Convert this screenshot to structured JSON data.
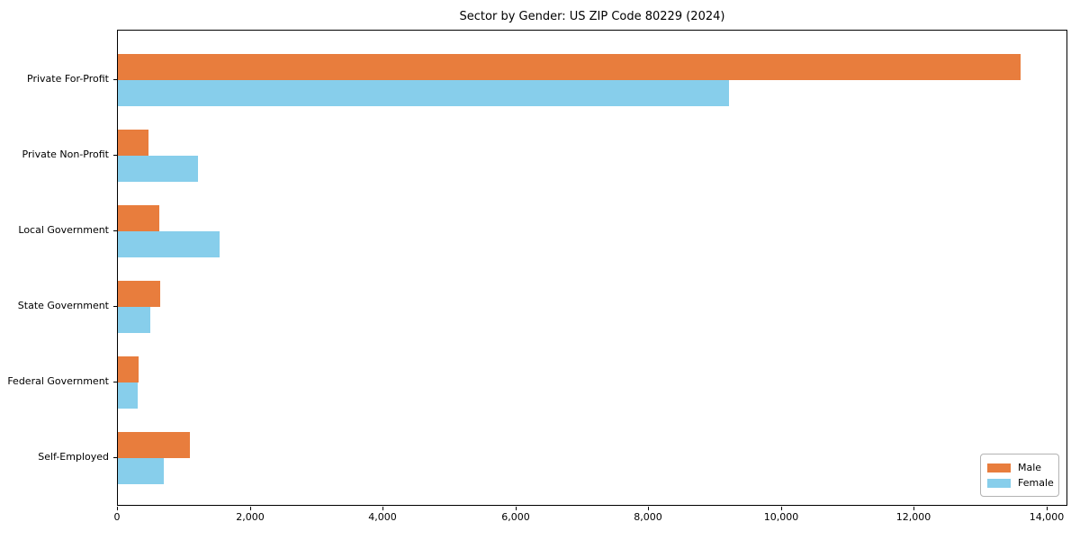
{
  "title": "Sector by Gender: US ZIP Code 80229 (2024)",
  "colors": {
    "male": "#e87d3d",
    "female": "#87ceeb",
    "spine": "#000000",
    "legend_border": "#b3b3b3",
    "background": "#ffffff"
  },
  "legend": {
    "position": "lower right",
    "entries": [
      "Male",
      "Female"
    ]
  },
  "chart_data": {
    "type": "bar",
    "orientation": "horizontal",
    "title": "Sector by Gender: US ZIP Code 80229 (2024)",
    "categories": [
      "Private For-Profit",
      "Private Non-Profit",
      "Local Government",
      "State Government",
      "Federal Government",
      "Self-Employed"
    ],
    "series": [
      {
        "name": "Male",
        "color": "#e87d3d",
        "values": [
          13600,
          460,
          620,
          640,
          310,
          1090
        ]
      },
      {
        "name": "Female",
        "color": "#87ceeb",
        "values": [
          9200,
          1210,
          1530,
          490,
          300,
          690
        ]
      }
    ],
    "xlabel": "",
    "ylabel": "",
    "xlim": [
      0,
      14000
    ],
    "xticks": [
      0,
      2000,
      4000,
      6000,
      8000,
      10000,
      12000,
      14000
    ],
    "xtick_labels": [
      "0",
      "2,000",
      "4,000",
      "6,000",
      "8,000",
      "10,000",
      "12,000",
      "14,000"
    ],
    "grid": false,
    "legend_position": "lower right"
  }
}
